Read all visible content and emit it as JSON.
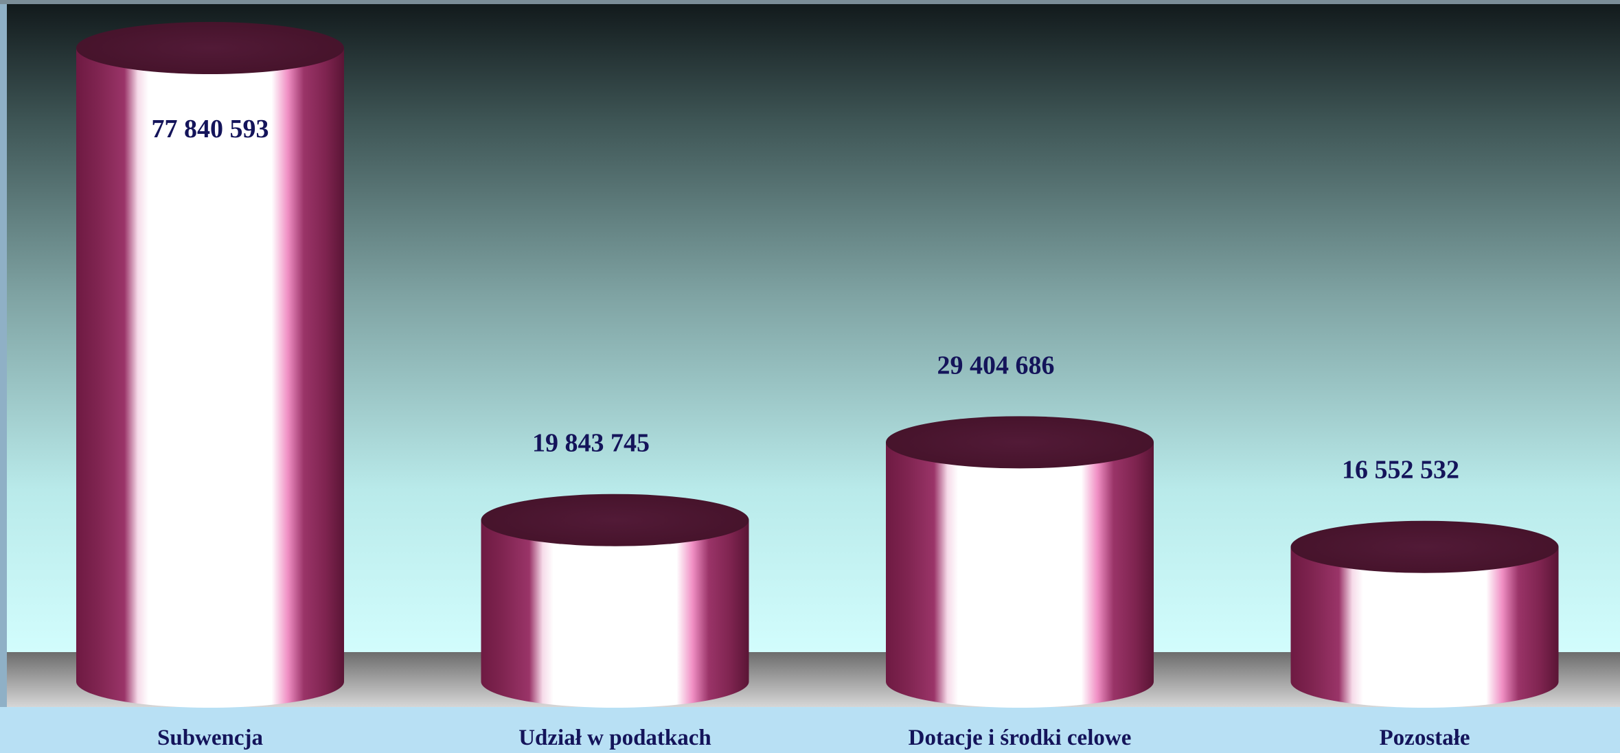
{
  "chart_data": {
    "type": "bar",
    "style": "3d-cylinder",
    "categories": [
      "Subwencja",
      "Udział w podatkach",
      "Dotacje i środki celowe",
      "Pozostałe"
    ],
    "values": [
      77840593,
      19843745,
      29404686,
      16552532
    ],
    "value_labels": [
      "77 840 593",
      "19 843 745",
      "29 404 686",
      "16 552 532"
    ],
    "title": "",
    "xlabel": "",
    "ylabel": "",
    "ylim": [
      0,
      77840593
    ],
    "grid": false,
    "legend": "none",
    "colors": {
      "bar_dark": "#7a1e4b",
      "bar_mid": "#8e2a5c",
      "bar_top": "#4a1631",
      "bar_highlight": "#ffffff",
      "label_color": "#14145a",
      "bg_top": "#121a1c",
      "bg_bottom": "#d2fdfd",
      "floor": "#9a9a9a",
      "base_band": "#b8e0f4"
    }
  }
}
